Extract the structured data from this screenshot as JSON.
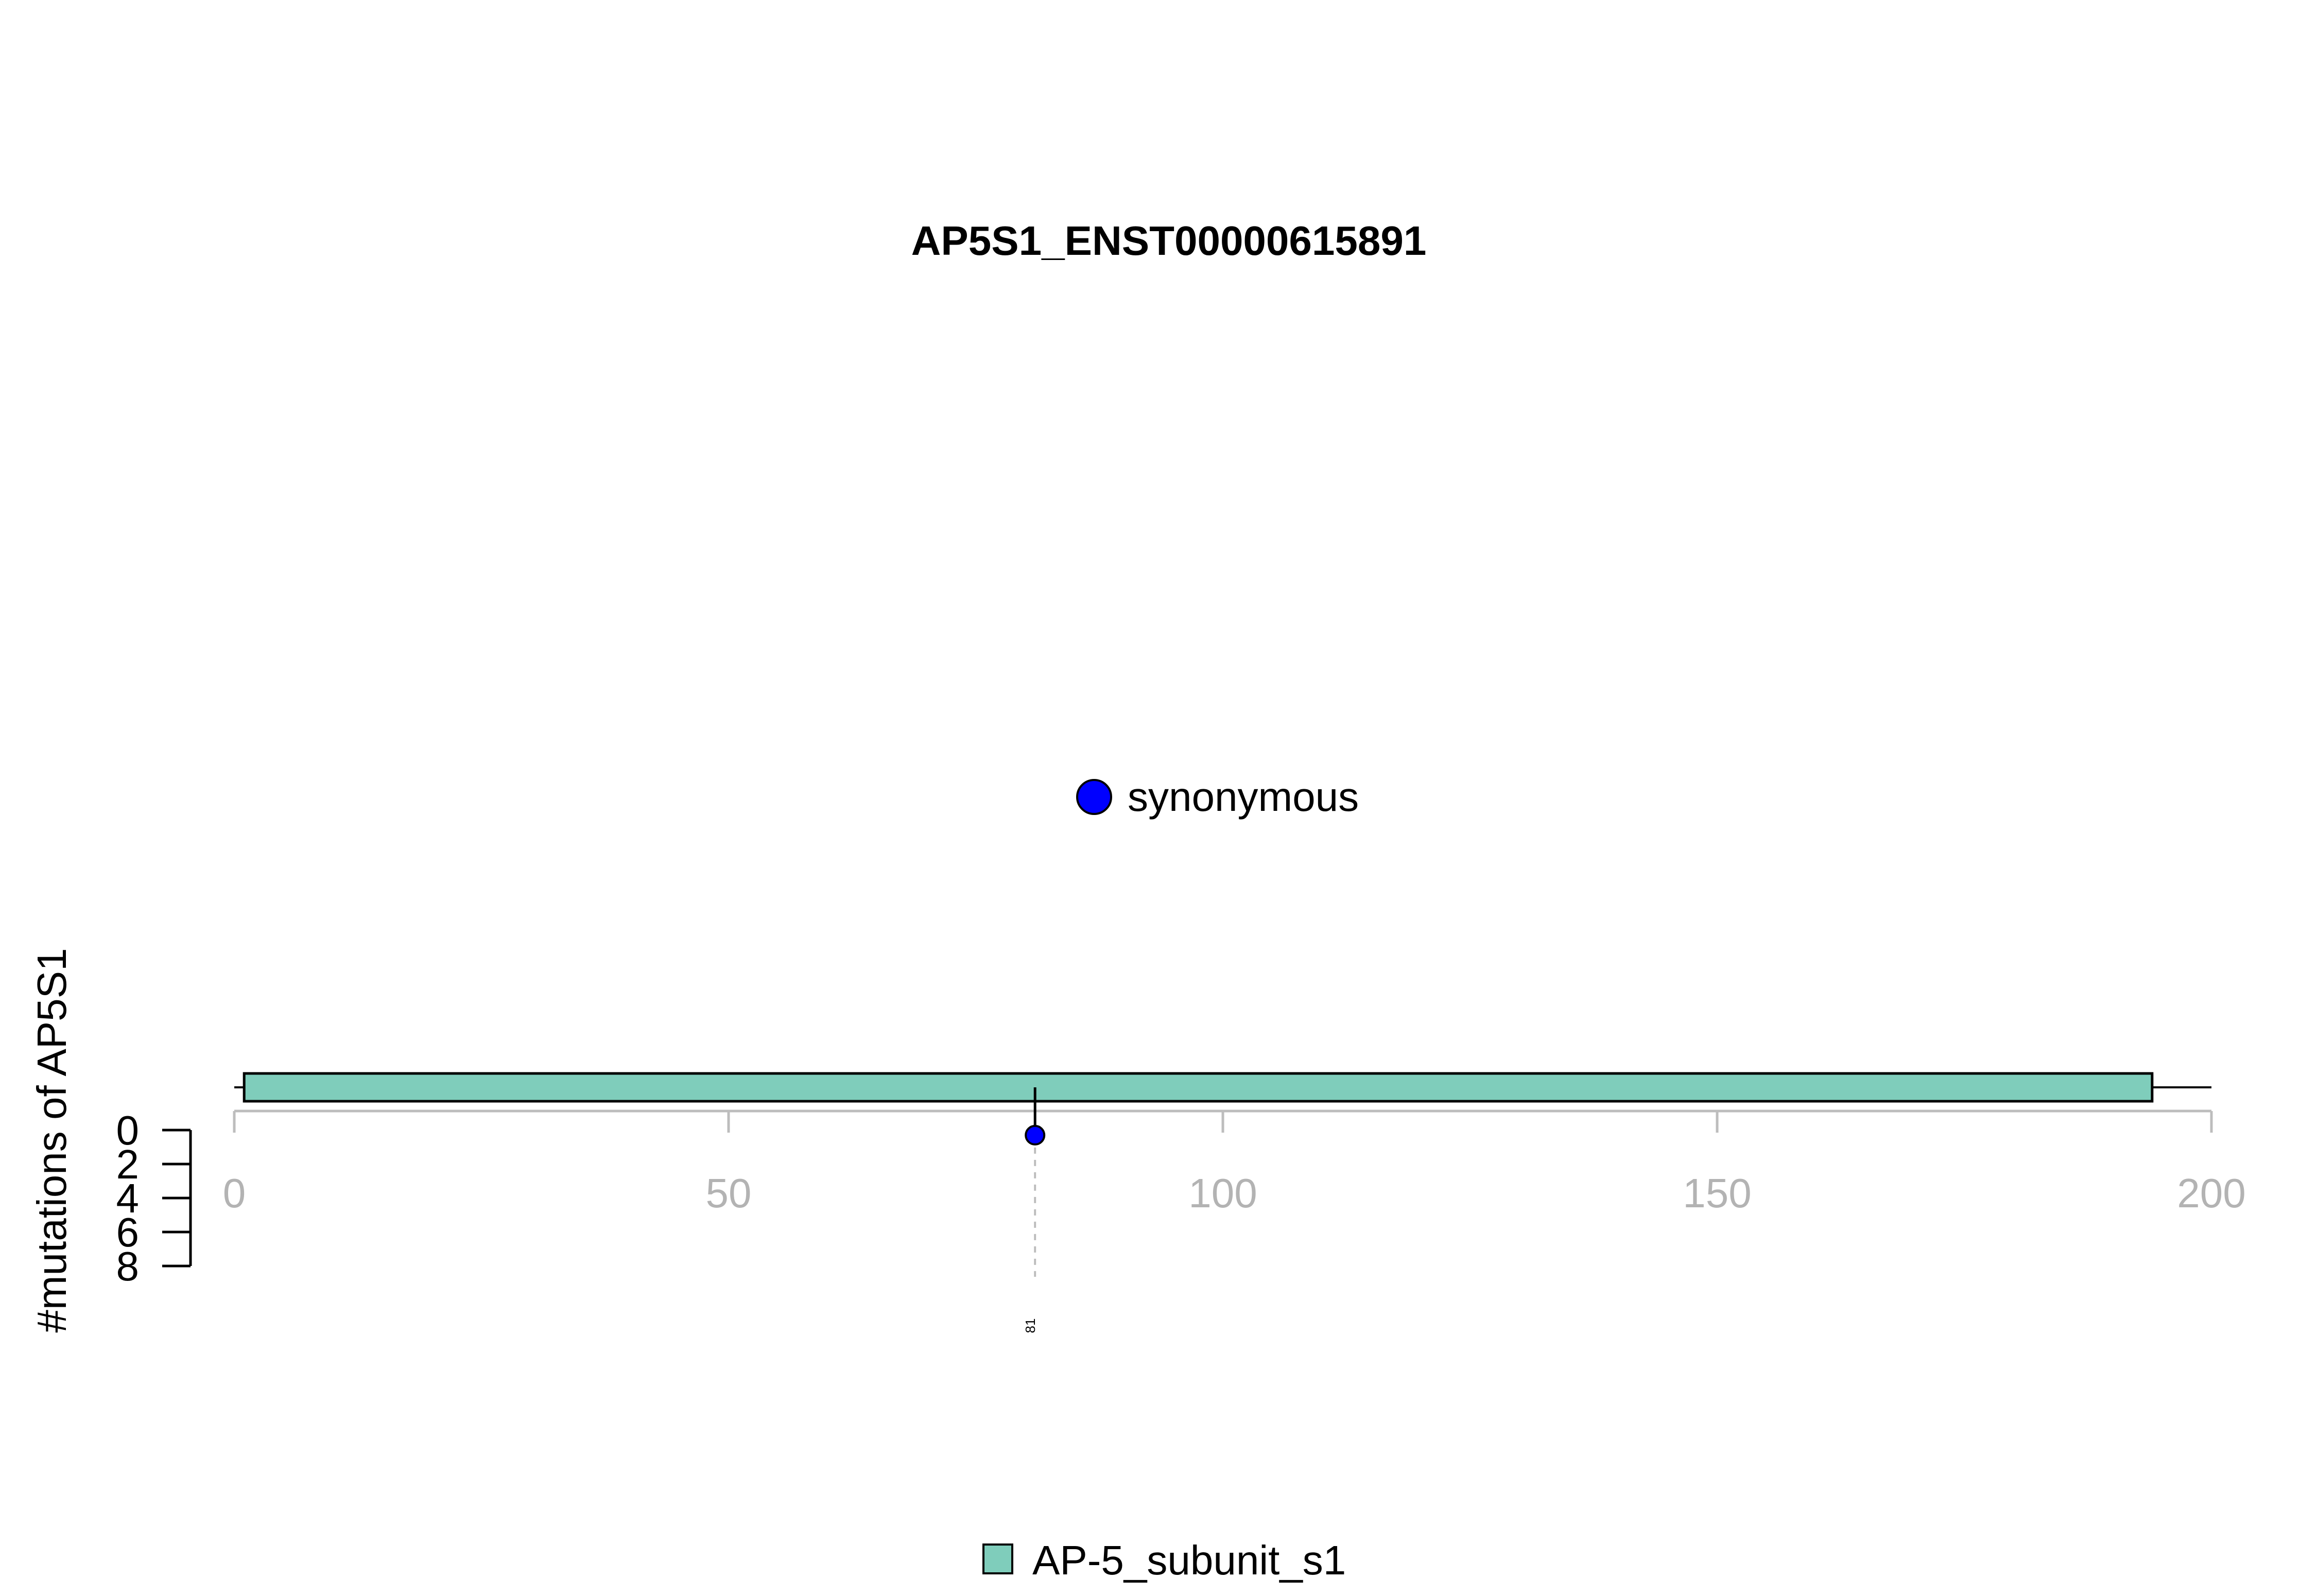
{
  "chart_data": {
    "type": "lollipop",
    "title": "AP5S1_ENST00000615891",
    "ylabel": "#mutations of AP5S1",
    "xlim": [
      0,
      200
    ],
    "x_ticks": [
      "0",
      "50",
      "100",
      "150",
      "200"
    ],
    "ylim": [
      0,
      8
    ],
    "y_ticks": [
      "0",
      "2",
      "4",
      "6",
      "8"
    ],
    "protein_length": 200,
    "domains": [
      {
        "name": "AP-5_subunit_s1",
        "start": 1,
        "end": 194,
        "color": "#7fcdbb"
      }
    ],
    "mutations": [
      {
        "position": 81,
        "label": "81",
        "count": 1,
        "type": "synonymous",
        "color": "#0000ff"
      }
    ],
    "mutation_legend": [
      {
        "label": "synonymous",
        "color": "#0000ff"
      }
    ],
    "domain_legend": [
      {
        "label": "AP-5_subunit_s1",
        "color": "#7fcdbb"
      }
    ]
  }
}
